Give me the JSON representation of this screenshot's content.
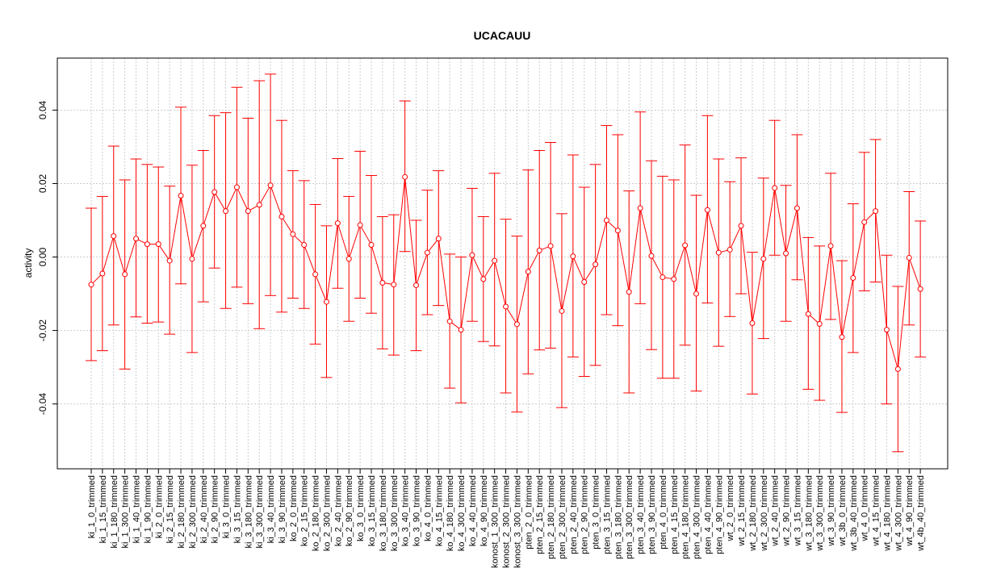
{
  "chart_data": {
    "type": "line",
    "title": "UCACAUU",
    "ylabel": "activity",
    "xlabel": "",
    "ylim": [
      -0.057,
      0.0535
    ],
    "yticks": [
      -0.04,
      -0.02,
      0.0,
      0.02,
      0.04
    ],
    "ytick_labels": [
      "-0.04",
      "-0.02",
      "0.00",
      "0.02",
      "0.04"
    ],
    "grid": true,
    "series_color": "#ff0000",
    "grid_color": "#cccccc",
    "categories": [
      "ki_1_0_trimmed",
      "ki_1_15_trimmed",
      "ki_1_180_trimmed",
      "ki_1_300_trimmed",
      "ki_1_40_trimmed",
      "ki_1_90_trimmed",
      "ki_2_0_trimmed",
      "ki_2_15_trimmed",
      "ki_2_180_trimmed",
      "ki_2_300_trimmed",
      "ki_2_40_trimmed",
      "ki_2_90_trimmed",
      "ki_3_0_trimmed",
      "ki_3_15_trimmed",
      "ki_3_180_trimmed",
      "ki_3_300_trimmed",
      "ki_3_40_trimmed",
      "ki_3_90_trimmed",
      "ko_2_0_trimmed",
      "ko_2_15_trimmed",
      "ko_2_180_trimmed",
      "ko_2_300_trimmed",
      "ko_2_40_trimmed",
      "ko_2_90_trimmed",
      "ko_3_0_trimmed",
      "ko_3_15_trimmed",
      "ko_3_180_trimmed",
      "ko_3_300_trimmed",
      "ko_3_40_trimmed",
      "ko_3_90_trimmed",
      "ko_4_0_trimmed",
      "ko_4_15_trimmed",
      "ko_4_180_trimmed",
      "ko_4_300_trimmed",
      "ko_4_40_trimmed",
      "ko_4_90_trimmed",
      "konost_1_300_trimmed",
      "konost_2_300_trimmed",
      "konost_3_300_trimmed",
      "pten_2_0_trimmed",
      "pten_2_15_trimmed",
      "pten_2_180_trimmed",
      "pten_2_300_trimmed",
      "pten_2_40_trimmed",
      "pten_2_90_trimmed",
      "pten_3_0_trimmed",
      "pten_3_15_trimmed",
      "pten_3_180_trimmed",
      "pten_3_300_trimmed",
      "pten_3_40_trimmed",
      "pten_3_90_trimmed",
      "pten_4_0_trimmed",
      "pten_4_15_trimmed",
      "pten_4_180_trimmed",
      "pten_4_300_trimmed",
      "pten_4_40_trimmed",
      "pten_4_90_trimmed",
      "wt_2_0_trimmed",
      "wt_2_15_trimmed",
      "wt_2_180_trimmed",
      "wt_2_300_trimmed",
      "wt_2_40_trimmed",
      "wt_2_90_trimmed",
      "wt_3_15_trimmed",
      "wt_3_180_trimmed",
      "wt_3_300_trimmed",
      "wt_3_90_trimmed",
      "wt_3b_0_trimmed",
      "wt_3b_40_trimmed",
      "wt_4_0_trimmed",
      "wt_4_15_trimmed",
      "wt_4_180_trimmed",
      "wt_4_300_trimmed",
      "wt_4_90_trimmed",
      "wt_4b_40_trimmed"
    ],
    "values": [
      -0.0075,
      -0.0045,
      0.0057,
      -0.0047,
      0.005,
      0.0035,
      0.0035,
      -0.001,
      0.0167,
      -0.0005,
      0.0085,
      0.0177,
      0.0125,
      0.019,
      0.0125,
      0.0142,
      0.0195,
      0.011,
      0.0062,
      0.0033,
      -0.0047,
      -0.0122,
      0.0092,
      -0.0005,
      0.0087,
      0.0033,
      -0.007,
      -0.0075,
      0.0218,
      -0.0077,
      0.0012,
      0.005,
      -0.0175,
      -0.0198,
      0.0005,
      -0.006,
      -0.001,
      -0.0135,
      -0.0183,
      -0.004,
      0.0018,
      0.003,
      -0.0147,
      0.0002,
      -0.0068,
      -0.002,
      0.01,
      0.0072,
      -0.0095,
      0.0133,
      0.0003,
      -0.0055,
      -0.006,
      0.0032,
      -0.01,
      0.0128,
      0.0012,
      0.002,
      0.0085,
      -0.018,
      -0.0005,
      0.0188,
      0.001,
      0.0133,
      -0.0155,
      -0.0182,
      0.003,
      -0.0218,
      -0.0057,
      0.0095,
      0.0125,
      -0.0198,
      -0.0305,
      -0.0002,
      -0.0087
    ],
    "lower": [
      -0.0282,
      -0.0255,
      -0.0185,
      -0.0305,
      -0.0163,
      -0.018,
      -0.0177,
      -0.021,
      -0.0073,
      -0.026,
      -0.0122,
      -0.003,
      -0.014,
      -0.0082,
      -0.0127,
      -0.0195,
      -0.0105,
      -0.015,
      -0.0112,
      -0.014,
      -0.0237,
      -0.0328,
      -0.0085,
      -0.0175,
      -0.0112,
      -0.0153,
      -0.025,
      -0.0267,
      0.0015,
      -0.0255,
      -0.0157,
      -0.0132,
      -0.0357,
      -0.0397,
      -0.0175,
      -0.023,
      -0.0242,
      -0.037,
      -0.0422,
      -0.0318,
      -0.0253,
      -0.0248,
      -0.041,
      -0.0272,
      -0.0325,
      -0.0295,
      -0.0157,
      -0.0187,
      -0.037,
      -0.0127,
      -0.0252,
      -0.033,
      -0.033,
      -0.024,
      -0.0365,
      -0.0125,
      -0.0243,
      -0.0162,
      -0.01,
      -0.0373,
      -0.0222,
      0.0005,
      -0.0175,
      -0.0062,
      -0.036,
      -0.039,
      -0.017,
      -0.0423,
      -0.026,
      -0.0092,
      -0.0068,
      -0.04,
      -0.053,
      -0.0185,
      -0.0272
    ],
    "upper": [
      0.0133,
      0.0165,
      0.0302,
      0.021,
      0.0267,
      0.0252,
      0.0245,
      0.0193,
      0.0408,
      0.025,
      0.029,
      0.0385,
      0.0393,
      0.0462,
      0.0378,
      0.048,
      0.0498,
      0.0372,
      0.0235,
      0.0208,
      0.0143,
      0.0085,
      0.0268,
      0.0165,
      0.0288,
      0.0222,
      0.011,
      0.0115,
      0.0425,
      0.01,
      0.0182,
      0.0235,
      0.0008,
      0.0,
      0.0187,
      0.011,
      0.0228,
      0.0103,
      0.0057,
      0.0237,
      0.029,
      0.0312,
      0.0118,
      0.0278,
      0.019,
      0.0252,
      0.0358,
      0.0333,
      0.018,
      0.0395,
      0.0262,
      0.022,
      0.021,
      0.0305,
      0.0168,
      0.0385,
      0.0267,
      0.0205,
      0.027,
      0.0013,
      0.0215,
      0.0372,
      0.0195,
      0.0333,
      0.0053,
      0.003,
      0.0228,
      -0.001,
      0.0145,
      0.0285,
      0.032,
      0.0005,
      -0.008,
      0.0178,
      0.0098
    ]
  }
}
